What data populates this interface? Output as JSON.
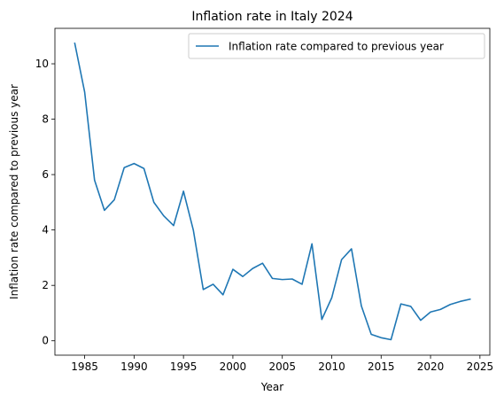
{
  "chart_data": {
    "type": "line",
    "title": "Inflation rate in Italy 2024",
    "xlabel": "Year",
    "ylabel": "Inflation rate compared to previous year",
    "xlim": [
      1981.99,
      2026.0
    ],
    "ylim": [
      -0.52,
      11.28
    ],
    "xticks": [
      1985,
      1990,
      1995,
      2000,
      2005,
      2010,
      2015,
      2020,
      2025
    ],
    "yticks": [
      0,
      2,
      4,
      6,
      8,
      10
    ],
    "grid": false,
    "legend_position": "top-right",
    "series": [
      {
        "name": "Inflation rate compared to previous year",
        "color": "#1f77b4",
        "x": [
          1984,
          1985,
          1986,
          1987,
          1988,
          1989,
          1990,
          1991,
          1992,
          1993,
          1994,
          1995,
          1996,
          1997,
          1998,
          1999,
          2000,
          2001,
          2002,
          2003,
          2004,
          2005,
          2006,
          2007,
          2008,
          2009,
          2010,
          2011,
          2012,
          2013,
          2014,
          2015,
          2016,
          2017,
          2018,
          2019,
          2020,
          2021,
          2022,
          2023,
          2024
        ],
        "y": [
          10.74,
          8.98,
          5.8,
          4.71,
          5.09,
          6.25,
          6.4,
          6.22,
          5.0,
          4.51,
          4.16,
          5.4,
          3.99,
          1.85,
          2.04,
          1.66,
          2.58,
          2.32,
          2.61,
          2.8,
          2.25,
          2.21,
          2.23,
          2.04,
          3.5,
          0.77,
          1.55,
          2.93,
          3.32,
          1.26,
          0.23,
          0.11,
          0.04,
          1.33,
          1.24,
          0.74,
          1.04,
          1.13,
          1.31,
          1.42,
          1.5
        ]
      }
    ]
  }
}
